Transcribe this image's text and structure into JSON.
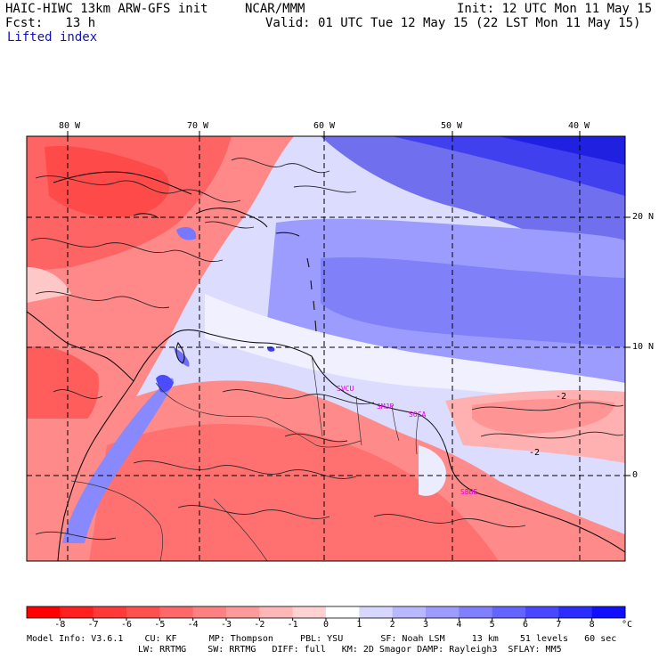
{
  "header": {
    "model": "HAIC-HIWC 13km ARW-GFS init",
    "org": "NCAR/MMM",
    "init": "Init: 12 UTC Mon 11 May 15",
    "fcst": "Fcst:   13 h",
    "valid": "Valid: 01 UTC Tue 12 May 15 (22 LST Mon 11 May 15)",
    "field": "Lifted index"
  },
  "map": {
    "lon_labels": [
      "80 W",
      "70 W",
      "60 W",
      "50 W",
      "40 W"
    ],
    "lat_labels": [
      "20 N",
      "10 N",
      "0"
    ],
    "contour_labels": [
      "-2",
      "-2"
    ],
    "sites": [
      "SVCU",
      "SMJP",
      "SOCA",
      "SBBE"
    ]
  },
  "colorbar": {
    "labels": [
      "-8",
      "-7",
      "-6",
      "-5",
      "-4",
      "-3",
      "-2",
      "-1",
      "0",
      "1",
      "2",
      "3",
      "4",
      "5",
      "6",
      "7",
      "8"
    ],
    "unit": "°C",
    "colors": [
      "#ff0000",
      "#ff2020",
      "#ff3838",
      "#ff5050",
      "#ff6868",
      "#ff8080",
      "#ff9a9a",
      "#ffb6b6",
      "#ffd2d2",
      "#ffffff",
      "#d6d6ff",
      "#b8b8ff",
      "#9c9cff",
      "#8080ff",
      "#6464ff",
      "#4848ff",
      "#2c2cff",
      "#1010ff"
    ]
  },
  "footer": {
    "line1": "Model Info: V3.6.1    CU: KF      MP: Thompson     PBL: YSU       SF: Noah LSM     13 km    51 levels   60 sec",
    "line2": "LW: RRTMG    SW: RRTMG   DIFF: full   KM: 2D Smagor DAMP: Rayleigh3  SFLAY: MM5"
  }
}
